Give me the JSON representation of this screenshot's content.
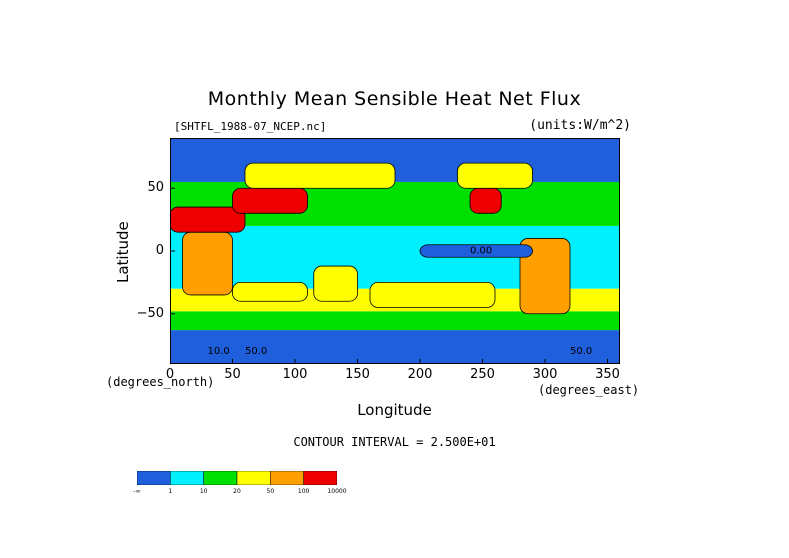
{
  "chart_data": {
    "type": "heatmap",
    "title": "Monthly Mean Sensible Heat Net Flux",
    "file_label": "[SHTFL_1988-07_NCEP.nc]",
    "units_label": "(units:W/m^2)",
    "xlabel": "Longitude",
    "ylabel": "Latitude",
    "x_unit_note": "(degrees_east)",
    "y_unit_note": "(degrees_north)",
    "xlim": [
      0,
      360
    ],
    "ylim": [
      -90,
      90
    ],
    "x_ticks": [
      "0",
      "50",
      "100",
      "150",
      "200",
      "250",
      "300",
      "350"
    ],
    "x_tick_values": [
      0,
      50,
      100,
      150,
      200,
      250,
      300,
      350
    ],
    "y_ticks": [
      "50",
      "0",
      "−50"
    ],
    "y_tick_values": [
      50,
      0,
      -50
    ],
    "contour_interval": "CONTOUR INTERVAL = 2.500E+01",
    "annotations": [
      "0.00",
      "10.0",
      "50.0",
      "50.0"
    ],
    "colorbar": {
      "levels": [
        "-∞",
        "1",
        "10",
        "20",
        "50",
        "100",
        "10000"
      ],
      "colors": [
        "#1f5fdc",
        "#00f0ff",
        "#00e000",
        "#ffff00",
        "#ffa000",
        "#ee0000"
      ]
    },
    "regions": [
      {
        "name": "polar-south",
        "x": [
          0,
          360
        ],
        "y": [
          -90,
          -63
        ],
        "class": 0
      },
      {
        "name": "south-ocean-band",
        "x": [
          0,
          360
        ],
        "y": [
          -63,
          -48
        ],
        "class": 2
      },
      {
        "name": "south-subtropic",
        "x": [
          0,
          360
        ],
        "y": [
          -48,
          -30
        ],
        "class": 3
      },
      {
        "name": "tropics",
        "x": [
          0,
          360
        ],
        "y": [
          -30,
          20
        ],
        "class": 1
      },
      {
        "name": "north-midlat",
        "x": [
          0,
          360
        ],
        "y": [
          20,
          55
        ],
        "class": 2
      },
      {
        "name": "arctic",
        "x": [
          0,
          360
        ],
        "y": [
          55,
          90
        ],
        "class": 0
      },
      {
        "name": "south-america",
        "x": [
          280,
          320
        ],
        "y": [
          -50,
          10
        ],
        "class": 4
      },
      {
        "name": "africa",
        "x": [
          10,
          50
        ],
        "y": [
          -35,
          15
        ],
        "class": 4
      },
      {
        "name": "australia",
        "x": [
          115,
          150
        ],
        "y": [
          -40,
          -12
        ],
        "class": 3
      },
      {
        "name": "sahara-arabia",
        "x": [
          0,
          60
        ],
        "y": [
          15,
          35
        ],
        "class": 5
      },
      {
        "name": "central-asia",
        "x": [
          50,
          110
        ],
        "y": [
          30,
          50
        ],
        "class": 5
      },
      {
        "name": "north-america-west",
        "x": [
          240,
          265
        ],
        "y": [
          30,
          50
        ],
        "class": 5
      },
      {
        "name": "north-america",
        "x": [
          230,
          290
        ],
        "y": [
          50,
          70
        ],
        "class": 3
      },
      {
        "name": "siberia",
        "x": [
          60,
          180
        ],
        "y": [
          50,
          70
        ],
        "class": 3
      },
      {
        "name": "pacific-warm",
        "x": [
          160,
          260
        ],
        "y": [
          -45,
          -25
        ],
        "class": 3
      },
      {
        "name": "indian-warm",
        "x": [
          50,
          110
        ],
        "y": [
          -40,
          -25
        ],
        "class": 3
      },
      {
        "name": "east-pacific-cold",
        "x": [
          200,
          290
        ],
        "y": [
          -5,
          5
        ],
        "class": 0
      }
    ]
  }
}
